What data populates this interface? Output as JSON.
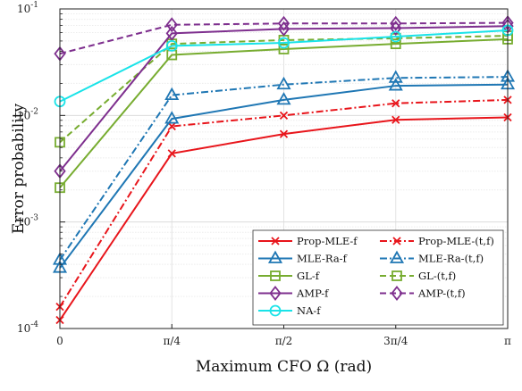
{
  "chart_data": {
    "type": "line",
    "title": "",
    "xlabel": "Maximum CFO Ω (rad)",
    "ylabel": "Error probability",
    "x": [
      0,
      0.25,
      0.5,
      0.75,
      1.0
    ],
    "x_unit": "π rad",
    "xlim": [
      0,
      1.0
    ],
    "x_tick_labels": [
      "0",
      "π/4",
      "π/2",
      "3π/4",
      "π"
    ],
    "yscale": "log",
    "ylim": [
      0.0001,
      0.1
    ],
    "y_ticks": [
      0.0001,
      0.001,
      0.01,
      0.1
    ],
    "y_tick_base": "10",
    "y_tick_exponents": [
      "-4",
      "-3",
      "-2",
      "-1"
    ],
    "grid": true,
    "legend_position": "bottom-right",
    "series": [
      {
        "name": "Prop-MLE-f",
        "color": "#e8151b",
        "dash": "solid",
        "marker": "x",
        "values": [
          0.00012,
          0.0044,
          0.0067,
          0.0091,
          0.0096
        ]
      },
      {
        "name": "Prop-MLE-(t,f)",
        "color": "#e8151b",
        "dash": "dashdot",
        "marker": "x",
        "values": [
          0.00016,
          0.0079,
          0.01,
          0.013,
          0.014
        ]
      },
      {
        "name": "MLE-Ra-f",
        "color": "#1f77b4",
        "dash": "solid",
        "marker": "triangle",
        "values": [
          0.00037,
          0.0093,
          0.014,
          0.019,
          0.0195
        ]
      },
      {
        "name": "MLE-Ra-(t,f)",
        "color": "#1f77b4",
        "dash": "dashdot",
        "marker": "triangle",
        "values": [
          0.00044,
          0.0155,
          0.0195,
          0.0225,
          0.023
        ]
      },
      {
        "name": "GL-f",
        "color": "#77ac30",
        "dash": "solid",
        "marker": "square",
        "values": [
          0.0021,
          0.037,
          0.042,
          0.047,
          0.052
        ]
      },
      {
        "name": "GL-(t,f)",
        "color": "#77ac30",
        "dash": "dashed",
        "marker": "square",
        "values": [
          0.0056,
          0.047,
          0.051,
          0.053,
          0.056
        ]
      },
      {
        "name": "AMP-f",
        "color": "#7e2f8e",
        "dash": "solid",
        "marker": "diamond",
        "values": [
          0.003,
          0.059,
          0.065,
          0.066,
          0.069
        ]
      },
      {
        "name": "AMP-(t,f)",
        "color": "#7e2f8e",
        "dash": "dashed",
        "marker": "diamond",
        "values": [
          0.038,
          0.071,
          0.073,
          0.073,
          0.074
        ]
      },
      {
        "name": "NA-f",
        "color": "#19e3e8",
        "dash": "solid",
        "marker": "circle",
        "values": [
          0.0135,
          0.045,
          0.048,
          0.055,
          0.063
        ]
      }
    ]
  }
}
